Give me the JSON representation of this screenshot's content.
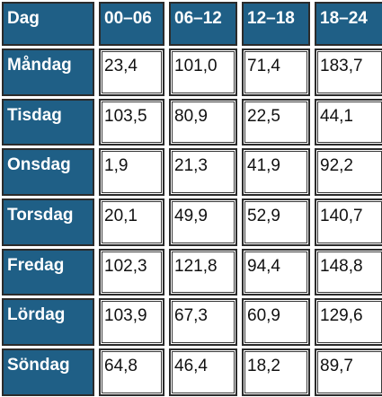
{
  "colors": {
    "header_bg": "#1f5f86",
    "header_text": "#ffffff",
    "cell_bg": "#ffffff",
    "border": "#2b2b2b"
  },
  "table": {
    "columns": [
      "Dag",
      "00–06",
      "06–12",
      "12–18",
      "18–24"
    ],
    "rows": [
      {
        "day": "Måndag",
        "values": [
          "23,4",
          "101,0",
          "71,4",
          "183,7"
        ]
      },
      {
        "day": "Tisdag",
        "values": [
          "103,5",
          "80,9",
          "22,5",
          "44,1"
        ]
      },
      {
        "day": "Onsdag",
        "values": [
          "1,9",
          "21,3",
          "41,9",
          "92,2"
        ]
      },
      {
        "day": "Torsdag",
        "values": [
          "20,1",
          "49,9",
          "52,9",
          "140,7"
        ]
      },
      {
        "day": "Fredag",
        "values": [
          "102,3",
          "121,8",
          "94,4",
          "148,8"
        ]
      },
      {
        "day": "Lördag",
        "values": [
          "103,9",
          "67,3",
          "60,9",
          "129,6"
        ]
      },
      {
        "day": "Söndag",
        "values": [
          "64,8",
          "46,4",
          "18,2",
          "89,7"
        ]
      }
    ]
  }
}
